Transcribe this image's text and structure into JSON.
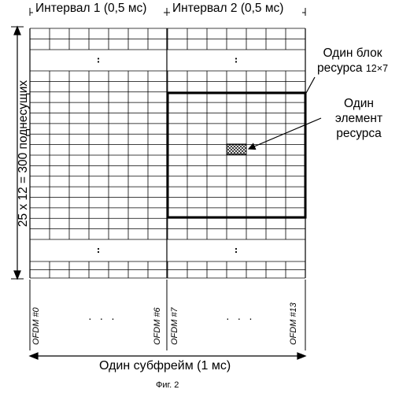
{
  "header": {
    "interval1": "Интервал 1 (0,5 мс)",
    "interval2": "Интервал 2 (0,5 мс)"
  },
  "left_axis": {
    "label": "25 x 12 = 300 поднесущих"
  },
  "callouts": {
    "block_line1": "Один блок",
    "block_line2": "ресурса",
    "block_size": "12×7",
    "element_line1": "Один",
    "element_line2": "элемент",
    "element_line3": "ресурса"
  },
  "symbols": {
    "s0": "OFDM #0",
    "s6": "OFDM #6",
    "s7": "OFDM #7",
    "s13": "OFDM #13",
    "ellipsis": "· · ·"
  },
  "bottom": {
    "label": "Один субфрейм (1 мс)"
  },
  "caption": "Фиг. 2",
  "grid": {
    "columns_per_interval": 7,
    "intervals": 2,
    "highlighted_block": {
      "columns": 7,
      "rows": 12
    },
    "line_color": "#000000",
    "hatch_color": "#000000"
  }
}
